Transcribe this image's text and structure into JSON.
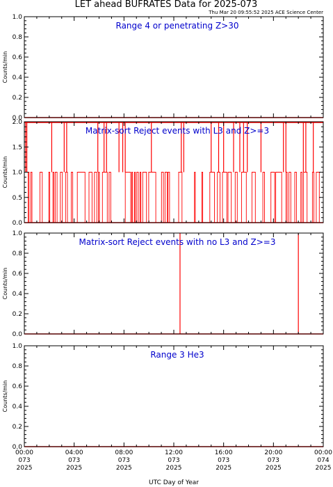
{
  "title": "LET ahead BUFRATES Data for 2025-073",
  "timestamp": "Thu Mar 20 09:55:52 2025 ACE Science Center",
  "xlabel": "UTC Day of Year",
  "colors": {
    "axis": "#000000",
    "data": "#ff0000",
    "label": "#0000cc"
  },
  "x_ticks": [
    {
      "time": "00:00",
      "doy": "073",
      "year": "2025"
    },
    {
      "time": "04:00",
      "doy": "073",
      "year": "2025"
    },
    {
      "time": "08:00",
      "doy": "073",
      "year": "2025"
    },
    {
      "time": "12:00",
      "doy": "073",
      "year": "2025"
    },
    {
      "time": "16:00",
      "doy": "073",
      "year": "2025"
    },
    {
      "time": "20:00",
      "doy": "073",
      "year": "2025"
    },
    {
      "time": "00:00",
      "doy": "074",
      "year": "2025"
    }
  ],
  "chart_data": [
    {
      "type": "line",
      "title": "Range 4 or  penetrating Z>30",
      "ylabel": "Counts/min",
      "xlim": [
        0,
        24
      ],
      "ylim": [
        0,
        1.0
      ],
      "yticks": [
        "0.0",
        "0.2",
        "0.4",
        "0.6",
        "0.8",
        "1.0"
      ],
      "mode": "zero",
      "spikes_2": [],
      "spikes_1": []
    },
    {
      "type": "line",
      "title": "Matrix-sort Reject events with L3 and Z>=3",
      "ylabel": "Counts/min",
      "xlim": [
        0,
        24
      ],
      "ylim": [
        0,
        2.0
      ],
      "yticks": [
        "0.0",
        "0.5",
        "1.0",
        "1.5",
        "2.0"
      ],
      "mode": "dense",
      "spikes_2": [
        0.1,
        0.2,
        2.2,
        3.2,
        3.4,
        5.9,
        6.4,
        6.6,
        7.6,
        7.9,
        8.1,
        10.2,
        12.6,
        12.8,
        15.0,
        15.6,
        16.0,
        16.8,
        17.3,
        17.6,
        17.9,
        19.0,
        20.8,
        21.0,
        22.4,
        22.6,
        23.2
      ],
      "spikes_1": []
    },
    {
      "type": "line",
      "title": "Matrix-sort Reject events with no L3 and Z>=3",
      "ylabel": "Counts/min",
      "xlim": [
        0,
        24
      ],
      "ylim": [
        0,
        1.0
      ],
      "yticks": [
        "0.0",
        "0.2",
        "0.4",
        "0.6",
        "0.8",
        "1.0"
      ],
      "mode": "zero",
      "spikes_2": [],
      "spikes_1": [
        12.5,
        22.0
      ]
    },
    {
      "type": "line",
      "title": "Range 3 He3",
      "ylabel": "Counts/min",
      "xlim": [
        0,
        24
      ],
      "ylim": [
        0,
        1.0
      ],
      "yticks": [
        "0.0",
        "0.2",
        "0.4",
        "0.6",
        "0.8",
        "1.0"
      ],
      "mode": "zero",
      "spikes_2": [],
      "spikes_1": []
    }
  ]
}
